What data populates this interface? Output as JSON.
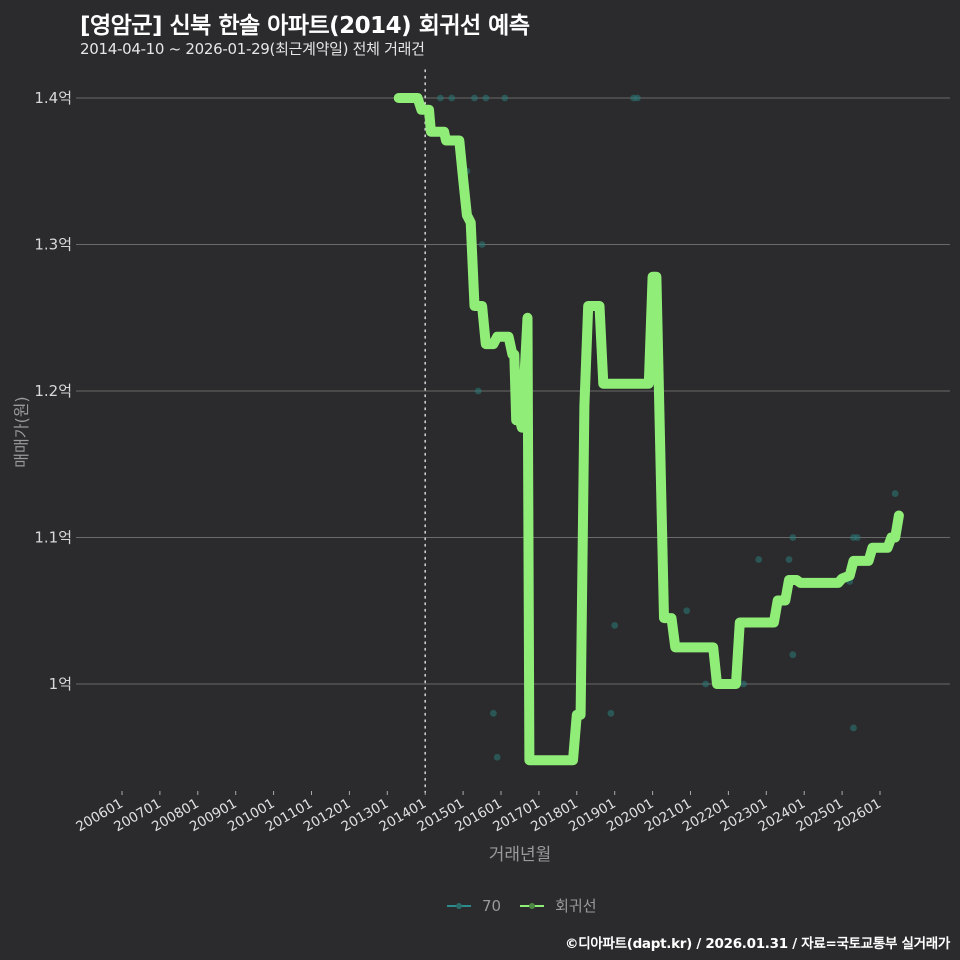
{
  "header": {
    "title": "[영암군] 신북 한솔 아파트(2014) 회귀선 예측",
    "subtitle": "2014-04-10 ~ 2026-01-29(최근계약일) 전체 거래건"
  },
  "axes": {
    "y_title": "매매가(원)",
    "x_title": "거래년월",
    "y_ticks": [
      "1.4억",
      "1.3억",
      "1.2억",
      "1.1억",
      "1억"
    ],
    "x_ticks": [
      "200601",
      "200701",
      "200801",
      "200901",
      "201001",
      "201101",
      "201201",
      "201301",
      "201401",
      "201501",
      "201601",
      "201701",
      "201801",
      "201901",
      "202001",
      "202101",
      "202201",
      "202301",
      "202401",
      "202501",
      "202601"
    ]
  },
  "legend": {
    "items": [
      {
        "label": "70",
        "color": "#2a8c8c"
      },
      {
        "label": "회귀선",
        "color": "#90ee78"
      }
    ]
  },
  "footer": {
    "credit": "©디아파트(dapt.kr) / 2026.01.31 / 자료=국토교통부 실거래가"
  },
  "colors": {
    "background": "#2b2a2c",
    "regression": "#90ee78",
    "scatter": "#2a8c8c",
    "grid": "#6a6a6a"
  },
  "chart_data": {
    "type": "line",
    "title": "[영암군] 신북 한솔 아파트(2014) 회귀선 예측",
    "subtitle": "2014-04-10 ~ 2026-01-29(최근계약일) 전체 거래건",
    "xlabel": "거래년월",
    "ylabel": "매매가(원)",
    "ylim": [
      0.93,
      1.41
    ],
    "y_unit": "억",
    "grid": true,
    "legend_position": "bottom",
    "vline": {
      "x": 2014.0,
      "style": "dotted"
    },
    "series": [
      {
        "name": "회귀선",
        "type": "line",
        "points": [
          [
            2013.3,
            1.4
          ],
          [
            2013.8,
            1.4
          ],
          [
            2013.9,
            1.392
          ],
          [
            2014.1,
            1.392
          ],
          [
            2014.15,
            1.377
          ],
          [
            2014.5,
            1.377
          ],
          [
            2014.55,
            1.371
          ],
          [
            2014.9,
            1.371
          ],
          [
            2015.0,
            1.345
          ],
          [
            2015.1,
            1.32
          ],
          [
            2015.2,
            1.315
          ],
          [
            2015.3,
            1.258
          ],
          [
            2015.5,
            1.258
          ],
          [
            2015.6,
            1.232
          ],
          [
            2015.8,
            1.232
          ],
          [
            2015.9,
            1.237
          ],
          [
            2016.2,
            1.237
          ],
          [
            2016.3,
            1.225
          ],
          [
            2016.35,
            1.225
          ],
          [
            2016.4,
            1.18
          ],
          [
            2016.5,
            1.18
          ],
          [
            2016.55,
            1.175
          ],
          [
            2016.7,
            1.25
          ],
          [
            2016.75,
            0.948
          ],
          [
            2017.2,
            0.948
          ],
          [
            2017.9,
            0.948
          ],
          [
            2018.0,
            0.979
          ],
          [
            2018.1,
            0.979
          ],
          [
            2018.2,
            1.19
          ],
          [
            2018.3,
            1.258
          ],
          [
            2018.6,
            1.258
          ],
          [
            2018.7,
            1.205
          ],
          [
            2019.9,
            1.205
          ],
          [
            2020.0,
            1.278
          ],
          [
            2020.1,
            1.278
          ],
          [
            2020.3,
            1.045
          ],
          [
            2020.5,
            1.045
          ],
          [
            2020.6,
            1.025
          ],
          [
            2021.6,
            1.025
          ],
          [
            2021.7,
            1.0
          ],
          [
            2022.2,
            1.0
          ],
          [
            2022.3,
            1.042
          ],
          [
            2023.2,
            1.042
          ],
          [
            2023.3,
            1.057
          ],
          [
            2023.5,
            1.057
          ],
          [
            2023.6,
            1.071
          ],
          [
            2023.8,
            1.071
          ],
          [
            2023.9,
            1.069
          ],
          [
            2024.9,
            1.069
          ],
          [
            2025.0,
            1.072
          ],
          [
            2025.2,
            1.074
          ],
          [
            2025.3,
            1.084
          ],
          [
            2025.7,
            1.084
          ],
          [
            2025.8,
            1.093
          ],
          [
            2026.2,
            1.093
          ],
          [
            2026.3,
            1.1
          ],
          [
            2026.4,
            1.1
          ],
          [
            2026.5,
            1.115
          ]
        ]
      },
      {
        "name": "70",
        "type": "scatter",
        "points": [
          [
            2014.4,
            1.4
          ],
          [
            2014.7,
            1.4
          ],
          [
            2015.1,
            1.35
          ],
          [
            2015.3,
            1.4
          ],
          [
            2015.6,
            1.4
          ],
          [
            2015.5,
            1.3
          ],
          [
            2015.4,
            1.2
          ],
          [
            2015.8,
            0.98
          ],
          [
            2015.9,
            0.95
          ],
          [
            2016.1,
            1.4
          ],
          [
            2018.9,
            0.98
          ],
          [
            2019.0,
            1.04
          ],
          [
            2019.5,
            1.4
          ],
          [
            2019.6,
            1.4
          ],
          [
            2020.9,
            1.05
          ],
          [
            2021.4,
            1.0
          ],
          [
            2022.4,
            1.0
          ],
          [
            2022.8,
            1.085
          ],
          [
            2023.6,
            1.085
          ],
          [
            2023.7,
            1.1
          ],
          [
            2023.7,
            1.02
          ],
          [
            2025.2,
            1.07
          ],
          [
            2025.3,
            1.1
          ],
          [
            2025.4,
            1.1
          ],
          [
            2025.3,
            0.97
          ],
          [
            2026.4,
            1.13
          ]
        ]
      }
    ]
  }
}
